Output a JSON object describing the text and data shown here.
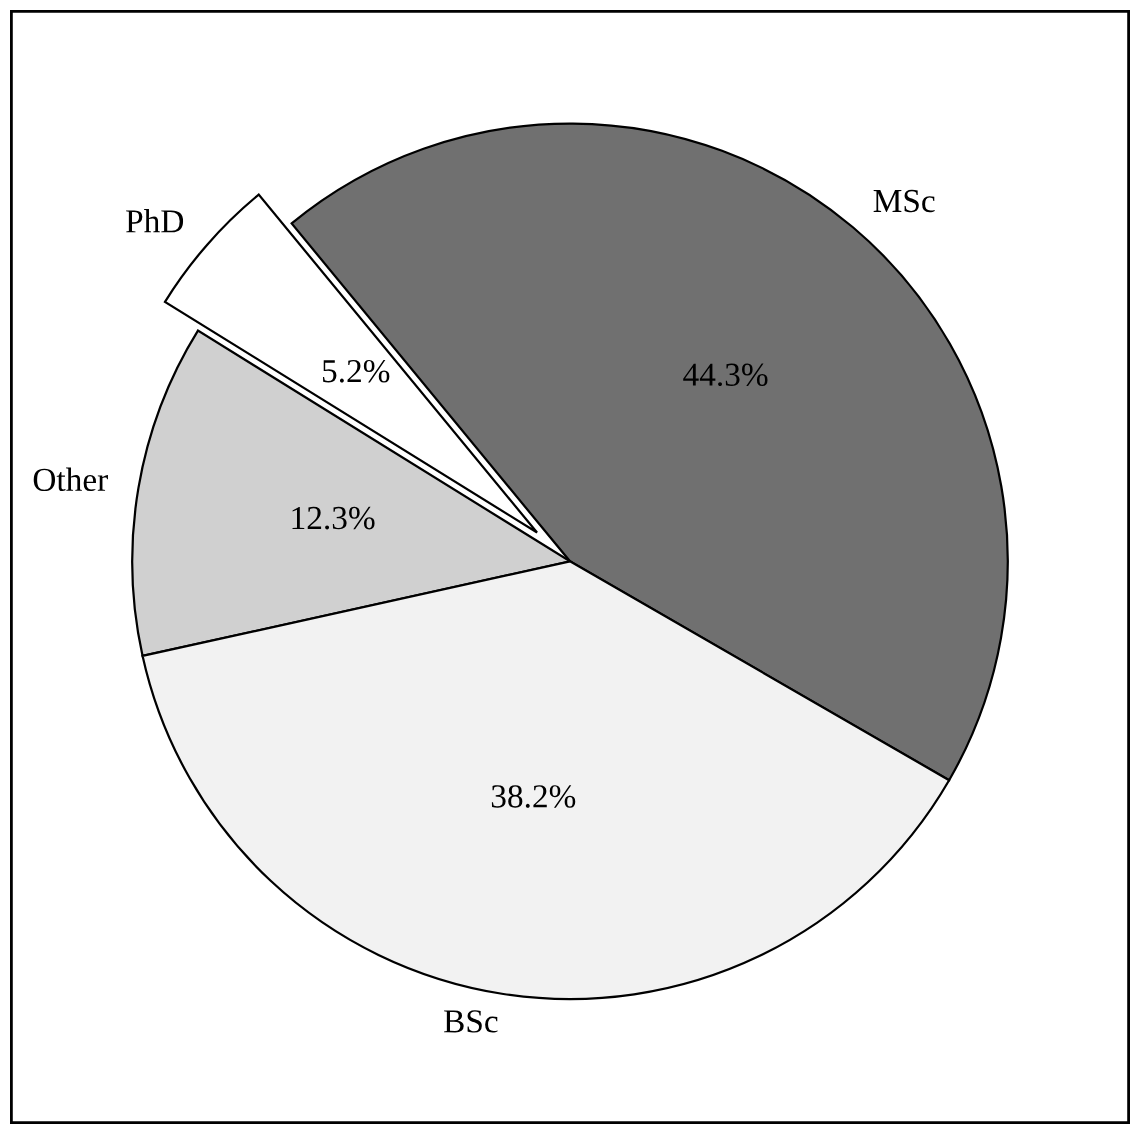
{
  "chart_data": {
    "type": "pie",
    "categories": [
      "MSc",
      "PhD",
      "Other",
      "BSc"
    ],
    "values": [
      44.3,
      5.2,
      12.3,
      38.2
    ],
    "colors": [
      "#707070",
      "#ffffff",
      "#d0d0d0",
      "#f2f2f2"
    ],
    "value_labels": [
      "44.3%",
      "5.2%",
      "12.3%",
      "38.2%"
    ],
    "legend": false
  }
}
